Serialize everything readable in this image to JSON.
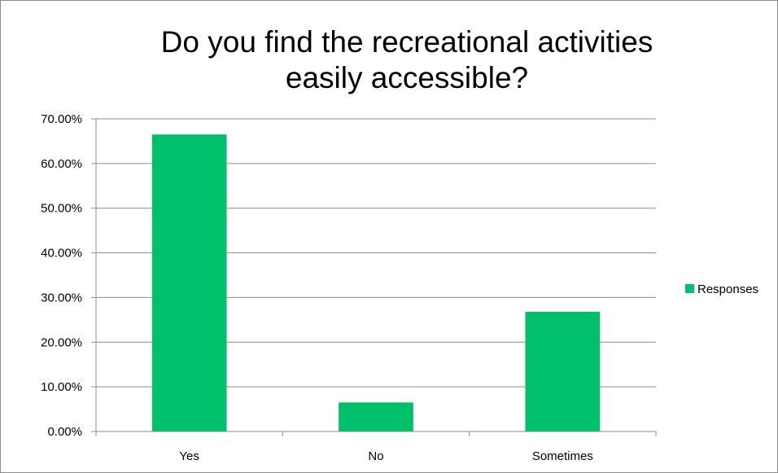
{
  "chart_data": {
    "type": "bar",
    "title_lines": [
      "Do you find the recreational activities",
      "easily accessible?"
    ],
    "categories": [
      "Yes",
      "No",
      "Sometimes"
    ],
    "series": [
      {
        "name": "Responses",
        "values": [
          0.665,
          0.065,
          0.268
        ],
        "color": "#00c06b"
      }
    ],
    "ylim": [
      0,
      0.7
    ],
    "y_ticks": [
      0.0,
      0.1,
      0.2,
      0.3,
      0.4,
      0.5,
      0.6,
      0.7
    ],
    "y_tick_labels": [
      "0.00%",
      "10.00%",
      "20.00%",
      "30.00%",
      "40.00%",
      "50.00%",
      "60.00%",
      "70.00%"
    ],
    "grid": true,
    "legend_position": "right"
  }
}
